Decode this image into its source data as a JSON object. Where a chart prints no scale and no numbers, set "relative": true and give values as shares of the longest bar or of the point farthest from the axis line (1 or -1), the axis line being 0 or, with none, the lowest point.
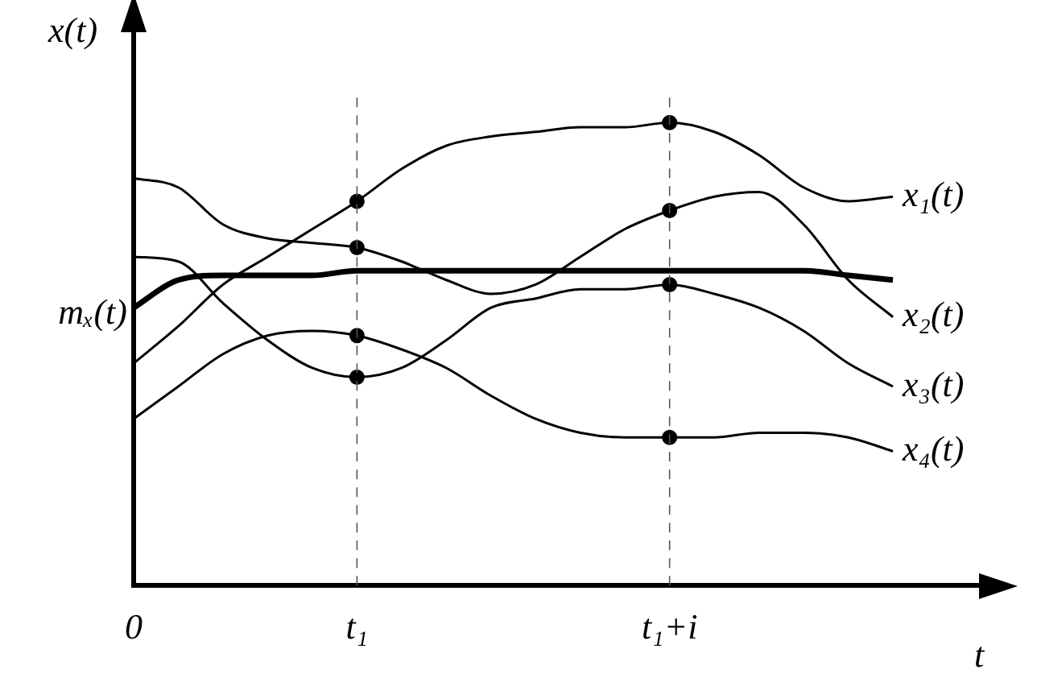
{
  "chart_data": {
    "type": "line",
    "relative": true,
    "xlabel": "t",
    "ylabel": "x(t)",
    "legend": false,
    "grid": false,
    "marker": "none",
    "categories": [
      "0",
      null,
      null,
      null,
      null,
      "t₁",
      null,
      null,
      null,
      null,
      null,
      null,
      "t₁+i",
      null,
      null,
      null,
      null,
      null,
      null,
      null
    ],
    "ref_lines": [
      {
        "axis": "x",
        "value": "t₁",
        "line_style": "dashed"
      },
      {
        "axis": "x",
        "value": "t₁+i",
        "line_style": "dashed"
      }
    ],
    "series": [
      {
        "name": "x₁(t)",
        "color": "#000000",
        "values": [
          0.48,
          0.56,
          0.65,
          0.71,
          0.77,
          0.83,
          0.9,
          0.95,
          0.97,
          0.98,
          0.99,
          0.99,
          1,
          0.98,
          0.93,
          0.86,
          0.83,
          0.84,
          null,
          null
        ]
      },
      {
        "name": "x₂(t)",
        "color": "#000000",
        "values": [
          0.88,
          0.86,
          0.78,
          0.75,
          0.74,
          0.73,
          0.7,
          0.66,
          0.63,
          0.65,
          0.71,
          0.77,
          0.81,
          0.84,
          0.85,
          0.78,
          0.66,
          0.58,
          null,
          null
        ]
      },
      {
        "name": "x₃(t)",
        "color": "#000000",
        "values": [
          0.71,
          0.7,
          0.61,
          0.53,
          0.47,
          0.45,
          0.47,
          0.53,
          0.6,
          0.62,
          0.64,
          0.64,
          0.65,
          0.63,
          0.6,
          0.55,
          0.48,
          0.43,
          null,
          null
        ]
      },
      {
        "name": "x₄(t)",
        "color": "#000000",
        "values": [
          0.36,
          0.43,
          0.5,
          0.54,
          0.55,
          0.54,
          0.51,
          0.47,
          0.41,
          0.36,
          0.33,
          0.32,
          0.32,
          0.32,
          0.33,
          0.33,
          0.32,
          0.29,
          null,
          null
        ]
      },
      {
        "type": "scatter",
        "color": "#000000",
        "marker": "circle",
        "x": [
          "t₁",
          "t₁",
          "t₁",
          "t₁",
          "t₁+i",
          "t₁+i",
          "t₁+i",
          "t₁+i"
        ],
        "values": [
          0.83,
          0.73,
          0.45,
          0.54,
          1,
          0.81,
          0.65,
          0.32
        ]
      },
      {
        "name": "mₓ(t)",
        "color": "#000000",
        "values": [
          0.6,
          0.66,
          0.67,
          0.67,
          0.67,
          0.68,
          0.68,
          0.68,
          0.68,
          0.68,
          0.68,
          0.68,
          0.68,
          0.68,
          0.68,
          0.68,
          0.67,
          0.66,
          null,
          null
        ]
      }
    ]
  }
}
